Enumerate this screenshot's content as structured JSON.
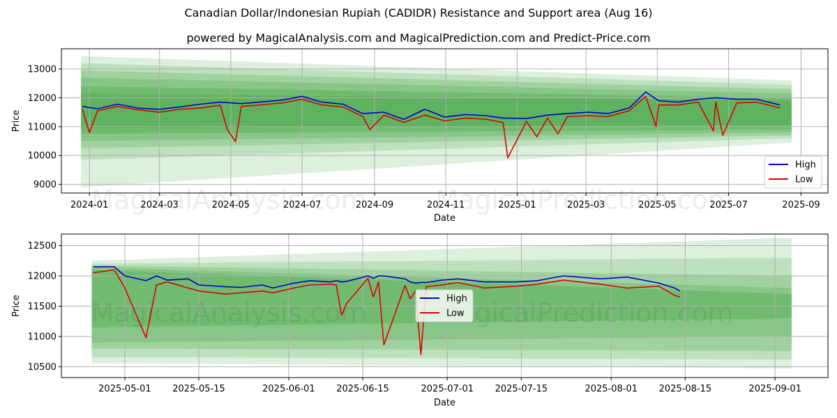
{
  "title": "Canadian Dollar/Indonesian Rupiah (CADIDR) Resistance and Support area (Aug 16)",
  "subtitle": "powered by MagicalAnalysis.com and MagicalPrediction.com and Predict-Price.com",
  "watermarks": [
    "MagicalAnalysis.com",
    "MagicalPrediction.com"
  ],
  "colors": {
    "high": "#0000cc",
    "low": "#dd0000",
    "band": "#2e9a2e"
  },
  "chart_data": [
    {
      "type": "line",
      "xlabel": "Date",
      "ylabel": "Price",
      "xticks": [
        "2024-01",
        "2024-03",
        "2024-05",
        "2024-07",
        "2024-09",
        "2024-11",
        "2025-01",
        "2025-03",
        "2025-05",
        "2025-07",
        "2025-09"
      ],
      "yticks": [
        "9000",
        "10000",
        "11000",
        "12000",
        "13000"
      ],
      "ylim": [
        8700,
        13700
      ],
      "xlim": [
        "2023-12-08",
        "2025-09-24"
      ],
      "grid": true,
      "legend_position": "lower right",
      "x": [
        "2023-12-26",
        "2024-01-08",
        "2024-01-25",
        "2024-02-12",
        "2024-03-01",
        "2024-03-18",
        "2024-04-05",
        "2024-04-22",
        "2024-05-10",
        "2024-05-28",
        "2024-06-14",
        "2024-07-01",
        "2024-07-18",
        "2024-08-05",
        "2024-08-22",
        "2024-09-09",
        "2024-09-26",
        "2024-10-14",
        "2024-10-31",
        "2024-11-18",
        "2024-12-05",
        "2024-12-20",
        "2025-01-09",
        "2025-01-27",
        "2025-02-13",
        "2025-03-03",
        "2025-03-20",
        "2025-04-07",
        "2025-04-21",
        "2025-05-02",
        "2025-05-19",
        "2025-06-05",
        "2025-06-20",
        "2025-07-08",
        "2025-07-25",
        "2025-08-14"
      ],
      "series": [
        {
          "name": "High",
          "values": [
            11700,
            11620,
            11780,
            11640,
            11600,
            11680,
            11780,
            11850,
            11800,
            11860,
            11920,
            12050,
            11850,
            11780,
            11450,
            11500,
            11250,
            11600,
            11330,
            11420,
            11380,
            11300,
            11280,
            11400,
            11450,
            11500,
            11450,
            11650,
            12200,
            11900,
            11850,
            11950,
            12000,
            11950,
            11950,
            11750
          ]
        },
        {
          "name": "Low",
          "values": [
            11600,
            11550,
            11700,
            11580,
            11500,
            11600,
            11650,
            11740,
            11700,
            11760,
            11820,
            11950,
            11750,
            11680,
            11350,
            11400,
            11150,
            11400,
            11200,
            11300,
            11260,
            11150,
            11180,
            11300,
            11350,
            11380,
            11350,
            11550,
            12050,
            11750,
            11750,
            11850,
            11850,
            11820,
            11850,
            11650
          ]
        }
      ],
      "low_dips": [
        {
          "x": "2024-01-01",
          "y": 10800
        },
        {
          "x": "2024-04-28",
          "y": 10900
        },
        {
          "x": "2024-05-05",
          "y": 10480
        },
        {
          "x": "2024-08-28",
          "y": 10900
        },
        {
          "x": "2024-12-24",
          "y": 9920
        },
        {
          "x": "2025-01-18",
          "y": 10650
        },
        {
          "x": "2025-02-05",
          "y": 10750
        },
        {
          "x": "2025-04-30",
          "y": 11000
        },
        {
          "x": "2025-06-18",
          "y": 10850
        },
        {
          "x": "2025-06-26",
          "y": 10700
        }
      ],
      "bands": [
        {
          "start": [
            13450,
            8900
          ],
          "end": [
            12600,
            10450
          ]
        },
        {
          "start": [
            13200,
            9850
          ],
          "end": [
            12450,
            10600
          ]
        },
        {
          "start": [
            12950,
            10250
          ],
          "end": [
            12300,
            10700
          ]
        },
        {
          "start": [
            12700,
            10500
          ],
          "end": [
            12150,
            10800
          ]
        },
        {
          "start": [
            12400,
            10750
          ],
          "end": [
            12000,
            10900
          ]
        },
        {
          "start": [
            12150,
            10950
          ],
          "end": [
            11900,
            11050
          ]
        }
      ]
    },
    {
      "type": "line",
      "xlabel": "Date",
      "ylabel": "Price",
      "xticks": [
        "2025-05-01",
        "2025-05-15",
        "2025-06-01",
        "2025-06-15",
        "2025-07-01",
        "2025-07-15",
        "2025-08-01",
        "2025-08-15",
        "2025-09-01"
      ],
      "yticks": [
        "10500",
        "11000",
        "11500",
        "12000",
        "12500"
      ],
      "ylim": [
        10320,
        12690
      ],
      "xlim": [
        "2025-04-19",
        "2025-09-11"
      ],
      "grid": true,
      "legend_position": "center",
      "x": [
        "2025-04-25",
        "2025-04-29",
        "2025-05-01",
        "2025-05-05",
        "2025-05-07",
        "2025-05-09",
        "2025-05-13",
        "2025-05-15",
        "2025-05-20",
        "2025-05-23",
        "2025-05-27",
        "2025-05-29",
        "2025-06-02",
        "2025-06-05",
        "2025-06-09",
        "2025-06-10",
        "2025-06-11",
        "2025-06-12",
        "2025-06-16",
        "2025-06-17",
        "2025-06-18",
        "2025-06-19",
        "2025-06-23",
        "2025-06-24",
        "2025-06-25",
        "2025-06-26",
        "2025-06-27",
        "2025-06-30",
        "2025-07-03",
        "2025-07-08",
        "2025-07-14",
        "2025-07-18",
        "2025-07-23",
        "2025-07-30",
        "2025-08-04",
        "2025-08-10",
        "2025-08-13",
        "2025-08-14"
      ],
      "series": [
        {
          "name": "High",
          "values": [
            12150,
            12150,
            12000,
            11920,
            12000,
            11930,
            11950,
            11850,
            11820,
            11810,
            11850,
            11800,
            11880,
            11920,
            11900,
            11920,
            11900,
            11910,
            12000,
            11960,
            12000,
            12000,
            11950,
            11900,
            11880,
            11890,
            11890,
            11930,
            11950,
            11900,
            11900,
            11920,
            12000,
            11950,
            11980,
            11880,
            11800,
            11750
          ]
        },
        {
          "name": "Low",
          "values": [
            12050,
            12100,
            11800,
            10980,
            11850,
            11900,
            11800,
            11750,
            11700,
            11720,
            11750,
            11720,
            11800,
            11850,
            11860,
            11850,
            11350,
            11550,
            11960,
            11650,
            11900,
            10860,
            11840,
            11620,
            11750,
            10700,
            11820,
            11850,
            11890,
            11800,
            11830,
            11860,
            11930,
            11860,
            11800,
            11830,
            11680,
            11650
          ]
        }
      ],
      "bands": [
        {
          "start": [
            12250,
            10560
          ],
          "end": [
            12630,
            10470
          ]
        },
        {
          "start": [
            12200,
            10660
          ],
          "end": [
            12300,
            10620
          ]
        },
        {
          "start": [
            12170,
            10800
          ],
          "end": [
            12000,
            10760
          ]
        },
        {
          "start": [
            12140,
            10900
          ],
          "end": [
            11800,
            11000
          ]
        },
        {
          "start": [
            12100,
            11150
          ],
          "end": [
            11700,
            11300
          ]
        }
      ]
    }
  ]
}
